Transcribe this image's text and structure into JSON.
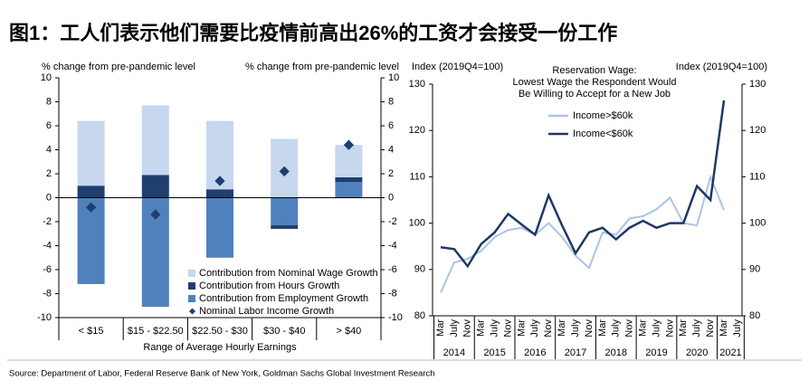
{
  "title": "图1：工人们表示他们需要比疫情前高出26%的工资才会接受一份工作",
  "source": "Source: Department of Labor, Federal Reserve Bank of New York, Goldman Sachs Global Investment Research",
  "chart_data": [
    {
      "type": "bar",
      "ylabel": "% change from pre-pandemic level",
      "y2label": "% change from pre-pandemic level",
      "xlabel": "Range of Average Hourly Earnings",
      "categories": [
        "< $15",
        "$15 - $22.50",
        "$22.50 - $30",
        "$30 - $40",
        "> $40"
      ],
      "series": [
        {
          "name": "Contribution from Nominal Wage Growth",
          "color": "#c6d7ee",
          "values": [
            5.4,
            5.8,
            5.7,
            4.9,
            2.7
          ]
        },
        {
          "name": "Contribution from Hours Growth",
          "color": "#1f3f6e",
          "values": [
            1.0,
            1.9,
            0.7,
            -0.3,
            0.4
          ]
        },
        {
          "name": "Contribution from Employment Growth",
          "color": "#4f81bd",
          "values": [
            -7.2,
            -9.1,
            -5.0,
            -2.3,
            1.3
          ]
        },
        {
          "name": "Nominal Labor Income Growth",
          "color": "#1f3f6e",
          "marker": "diamond",
          "values": [
            -0.8,
            -1.4,
            1.4,
            2.2,
            4.4
          ]
        }
      ],
      "ylim": [
        -10,
        10
      ],
      "yticks": [
        -10,
        -8,
        -6,
        -4,
        -2,
        0,
        2,
        4,
        6,
        8,
        10
      ],
      "y2lim": [
        -10,
        10
      ],
      "y2ticks": [
        -10,
        -8,
        -6,
        -4,
        -2,
        0,
        2,
        4,
        6,
        8,
        10
      ],
      "legend": "lower right"
    },
    {
      "type": "line",
      "title": [
        "Reservation Wage:",
        "Lowest Wage the Respondent Would",
        "Be Willing to Accept for a New Job"
      ],
      "ylabel": "Index (2019Q4=100)",
      "y2label": "Index (2019Q4=100)",
      "categories": [
        "Mar",
        "July",
        "Nov",
        "Mar",
        "July",
        "Nov",
        "Mar",
        "July",
        "Nov",
        "Mar",
        "July",
        "Nov",
        "Mar",
        "July",
        "Nov",
        "Mar",
        "July",
        "Nov",
        "Mar",
        "July",
        "Nov",
        "Mar",
        "July"
      ],
      "year_groups": [
        {
          "label": "2014",
          "count": 3
        },
        {
          "label": "2015",
          "count": 3
        },
        {
          "label": "2016",
          "count": 3
        },
        {
          "label": "2017",
          "count": 3
        },
        {
          "label": "2018",
          "count": 3
        },
        {
          "label": "2019",
          "count": 3
        },
        {
          "label": "2020",
          "count": 3
        },
        {
          "label": "2021",
          "count": 2
        }
      ],
      "series": [
        {
          "name": "Income>$60k",
          "color": "#a9c4e6",
          "values": [
            85,
            91.5,
            92.3,
            94,
            97,
            98.5,
            99,
            97.5,
            100,
            97,
            93,
            90.3,
            98,
            97.5,
            101,
            101.5,
            103,
            105.5,
            100,
            99.5,
            110,
            102.8,
            null
          ]
        },
        {
          "name": "Income<$60k",
          "color": "#1f3864",
          "values": [
            94.8,
            94.4,
            90.7,
            95.5,
            98,
            102,
            99.7,
            97.5,
            106,
            99.5,
            93.5,
            98,
            99,
            96.5,
            99,
            100.5,
            99,
            100,
            100,
            108,
            105,
            126.5,
            null
          ]
        }
      ],
      "ylim": [
        80,
        130
      ],
      "yticks": [
        80,
        90,
        100,
        110,
        120,
        130
      ],
      "y2lim": [
        80,
        130
      ],
      "y2ticks": [
        80,
        90,
        100,
        110,
        120,
        130
      ],
      "legend": "upper center"
    }
  ]
}
